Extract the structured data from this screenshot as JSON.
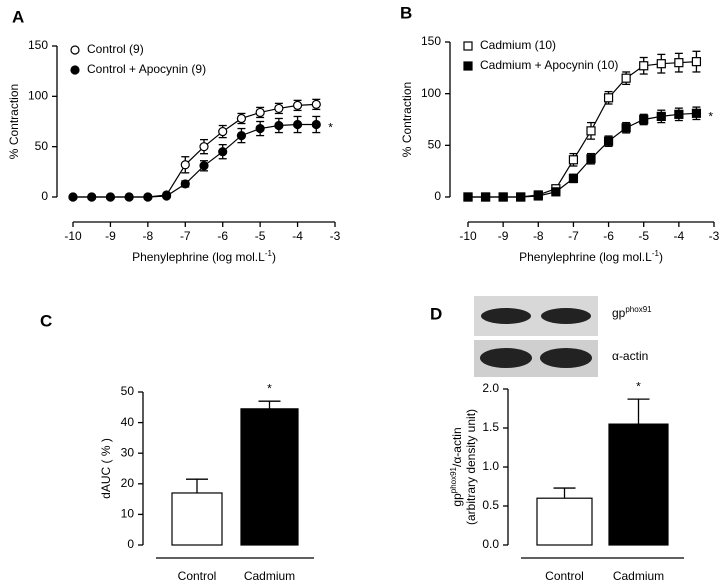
{
  "chart_data": [
    {
      "type": "line",
      "title": "A",
      "x": [
        -10,
        -9.5,
        -9,
        -8.5,
        -8,
        -7.5,
        -7,
        -6.5,
        -6,
        -5.5,
        -5,
        -4.5,
        -4,
        -3.5
      ],
      "xlim": [
        -10,
        -3
      ],
      "xticks": [
        -10,
        -9,
        -8,
        -7,
        -6,
        -5,
        -4,
        -3
      ],
      "ylim": [
        0,
        150
      ],
      "yticks": [
        0,
        50,
        100,
        150
      ],
      "xlabel": [
        "Phenylephrine (log mol.L",
        "-1",
        ")"
      ],
      "ylabel": "% Contraction",
      "annotation": "*",
      "legend": "upper left",
      "series": [
        {
          "name": "Control (9)",
          "color": "#000000",
          "marker": "open-circle",
          "values": [
            0,
            0,
            0,
            0,
            0,
            2,
            32,
            50,
            65,
            78,
            84,
            88,
            91,
            92
          ],
          "errors": [
            0,
            0,
            0,
            0,
            0,
            1,
            8,
            7,
            6,
            5,
            5,
            5,
            5,
            5
          ]
        },
        {
          "name": "Control + Apocynin (9)",
          "color": "#000000",
          "marker": "filled-circle",
          "values": [
            0,
            0,
            0,
            0,
            0,
            1,
            13,
            31,
            45,
            61,
            68,
            71,
            72,
            72
          ],
          "errors": [
            0,
            0,
            0,
            0,
            0,
            1,
            3,
            5,
            7,
            7,
            7,
            7,
            8,
            8
          ]
        }
      ]
    },
    {
      "type": "line",
      "title": "B",
      "x": [
        -10,
        -9.5,
        -9,
        -8.5,
        -8,
        -7.5,
        -7,
        -6.5,
        -6,
        -5.5,
        -5,
        -4.5,
        -4,
        -3.5
      ],
      "xlim": [
        -10,
        -3
      ],
      "xticks": [
        -10,
        -9,
        -8,
        -7,
        -6,
        -5,
        -4,
        -3
      ],
      "ylim": [
        0,
        150
      ],
      "yticks": [
        0,
        50,
        100,
        150
      ],
      "xlabel": [
        "Phenylephrine (log mol.L",
        "-1",
        ")"
      ],
      "ylabel": "% Contraction",
      "annotation": "*",
      "legend": "upper left",
      "series": [
        {
          "name": "Cadmium (10)",
          "color": "#000000",
          "marker": "open-square",
          "values": [
            0,
            0,
            0,
            0,
            2,
            8,
            36,
            64,
            96,
            115,
            127,
            129,
            130,
            131
          ],
          "errors": [
            0,
            0,
            0,
            0,
            1,
            3,
            6,
            8,
            6,
            6,
            8,
            9,
            9,
            10
          ]
        },
        {
          "name": "Cadmium + Apocynin (10)",
          "color": "#000000",
          "marker": "filled-square",
          "values": [
            0,
            0,
            0,
            0,
            1,
            5,
            18,
            37,
            54,
            67,
            75,
            78,
            80,
            81
          ],
          "errors": [
            0,
            0,
            0,
            0,
            1,
            2,
            4,
            5,
            5,
            5,
            5,
            6,
            6,
            6
          ]
        }
      ]
    },
    {
      "type": "bar",
      "title": "C",
      "categories": [
        "Control",
        "Cadmium"
      ],
      "values": [
        17,
        44.5
      ],
      "errors": [
        4.5,
        2.5
      ],
      "colors": [
        "#ffffff",
        "#000000"
      ],
      "ylim": [
        0,
        50
      ],
      "yticks": [
        0,
        10,
        20,
        30,
        40,
        50
      ],
      "ylabel": [
        "dAUC ( % )"
      ],
      "annotation": "*"
    },
    {
      "type": "bar",
      "title": "D",
      "categories": [
        "Control",
        "Cadmium"
      ],
      "values": [
        0.6,
        1.55
      ],
      "errors": [
        0.13,
        0.32
      ],
      "colors": [
        "#ffffff",
        "#000000"
      ],
      "ylim": [
        0,
        2
      ],
      "yticks": [
        {
          "value": 0,
          "label": "0.0"
        },
        0.5,
        {
          "value": 1,
          "label": "1.0"
        },
        1.5,
        {
          "value": 2,
          "label": "2.0"
        }
      ],
      "ylabel": [
        "gp",
        "phox91",
        "/α-actin",
        "(arbitrary density unit)"
      ],
      "annotation": "*",
      "blot_labels": {
        "top": [
          "gp",
          "phox91"
        ],
        "bottom": "α-actin"
      }
    }
  ]
}
